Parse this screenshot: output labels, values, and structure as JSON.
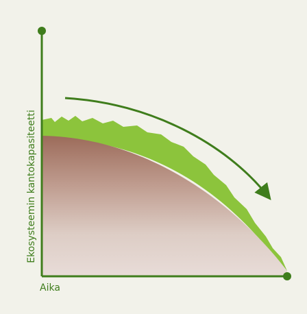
{
  "axes": {
    "y_label": "Ekosysteemin kantokapasiteetti",
    "x_label": "Aika"
  }
}
